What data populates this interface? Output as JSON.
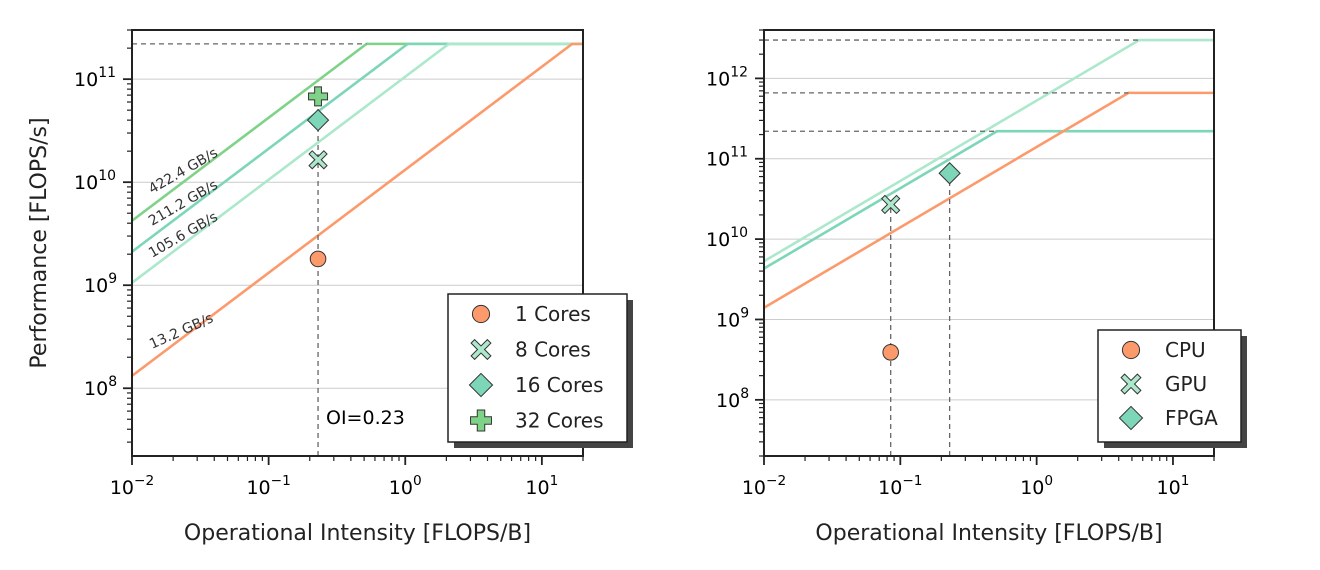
{
  "chart_data": [
    {
      "type": "line",
      "xlabel": "Operational Intensity [FLOPS/B]",
      "ylabel": "Performance [FLOPS/s]",
      "xscale": "log",
      "yscale": "log",
      "xlim": [
        0.01,
        20
      ],
      "ylim": [
        22000000.0,
        300000000000.0
      ],
      "x_ticks": [
        {
          "value": 0.01,
          "base": "10",
          "exp": "−2"
        },
        {
          "value": 0.1,
          "base": "10",
          "exp": "−1"
        },
        {
          "value": 1,
          "base": "10",
          "exp": "0"
        },
        {
          "value": 10,
          "base": "10",
          "exp": "1"
        }
      ],
      "y_ticks": [
        {
          "value": 100000000.0,
          "base": "10",
          "exp": "8"
        },
        {
          "value": 1000000000.0,
          "base": "10",
          "exp": "9"
        },
        {
          "value": 10000000000.0,
          "base": "10",
          "exp": "10"
        },
        {
          "value": 100000000000.0,
          "base": "10",
          "exp": "11"
        }
      ],
      "grid": "horizontal",
      "peak_lines": [
        220000000000.0
      ],
      "rooflines": [
        {
          "label": "422.4 GB/s",
          "bandwidth": 422400000000.0,
          "peak": 220000000000.0,
          "color": "#7ed388"
        },
        {
          "label": "211.2 GB/s",
          "bandwidth": 211200000000.0,
          "peak": 220000000000.0,
          "color": "#7dd6b8"
        },
        {
          "label": "105.6 GB/s",
          "bandwidth": 105600000000.0,
          "peak": 220000000000.0,
          "color": "#ace8cc"
        },
        {
          "label": "13.2 GB/s",
          "bandwidth": 13200000000.0,
          "peak": 220000000000.0,
          "color": "#fc9a6c"
        }
      ],
      "oi_lines": [
        0.23
      ],
      "annotation": "OI=0.23",
      "points": [
        {
          "name": "1 Cores",
          "x": 0.23,
          "y": 1800000000.0,
          "marker": "circle",
          "color": "#fc9a6c"
        },
        {
          "name": "8 Cores",
          "x": 0.23,
          "y": 16500000000.0,
          "marker": "x",
          "color": "#ace8cc"
        },
        {
          "name": "16 Cores",
          "x": 0.23,
          "y": 40000000000.0,
          "marker": "diamond",
          "color": "#7dd6b8"
        },
        {
          "name": "32 Cores",
          "x": 0.23,
          "y": 68000000000.0,
          "marker": "plus",
          "color": "#7ed388"
        }
      ],
      "legend": "lower-right",
      "legend_entries": [
        {
          "label": "1 Cores",
          "marker": "circle",
          "color": "#fc9a6c"
        },
        {
          "label": "8 Cores",
          "marker": "x",
          "color": "#ace8cc"
        },
        {
          "label": "16 Cores",
          "marker": "diamond",
          "color": "#7dd6b8"
        },
        {
          "label": "32 Cores",
          "marker": "plus",
          "color": "#7ed388"
        }
      ]
    },
    {
      "type": "line",
      "xlabel": "Operational Intensity [FLOPS/B]",
      "ylabel": "",
      "xscale": "log",
      "yscale": "log",
      "xlim": [
        0.01,
        20
      ],
      "ylim": [
        20000000.0,
        4000000000000.0
      ],
      "x_ticks": [
        {
          "value": 0.01,
          "base": "10",
          "exp": "−2"
        },
        {
          "value": 0.1,
          "base": "10",
          "exp": "−1"
        },
        {
          "value": 1,
          "base": "10",
          "exp": "0"
        },
        {
          "value": 10,
          "base": "10",
          "exp": "1"
        }
      ],
      "y_ticks": [
        {
          "value": 100000000.0,
          "base": "10",
          "exp": "8"
        },
        {
          "value": 1000000000.0,
          "base": "10",
          "exp": "9"
        },
        {
          "value": 10000000000.0,
          "base": "10",
          "exp": "10"
        },
        {
          "value": 100000000000.0,
          "base": "10",
          "exp": "11"
        },
        {
          "value": 1000000000000.0,
          "base": "10",
          "exp": "12"
        }
      ],
      "grid": "horizontal",
      "peak_lines": [
        3000000000000.0,
        660000000000.0,
        220000000000.0
      ],
      "rooflines": [
        {
          "label": "GPU",
          "bandwidth": 530000000000.0,
          "peak": 3000000000000.0,
          "color": "#ace8cc"
        },
        {
          "label": "FPGA",
          "bandwidth": 430000000000.0,
          "peak": 220000000000.0,
          "color": "#7dd6b8"
        },
        {
          "label": "CPU",
          "bandwidth": 140000000000.0,
          "peak": 660000000000.0,
          "color": "#fc9a6c"
        }
      ],
      "oi_lines": [
        0.085,
        0.23
      ],
      "annotation": "",
      "points": [
        {
          "name": "CPU",
          "x": 0.085,
          "y": 390000000.0,
          "marker": "circle",
          "color": "#fc9a6c"
        },
        {
          "name": "GPU",
          "x": 0.085,
          "y": 27000000000.0,
          "marker": "x",
          "color": "#ace8cc"
        },
        {
          "name": "FPGA",
          "x": 0.23,
          "y": 66000000000.0,
          "marker": "diamond",
          "color": "#7dd6b8"
        }
      ],
      "legend": "lower-right",
      "legend_entries": [
        {
          "label": "CPU",
          "marker": "circle",
          "color": "#fc9a6c"
        },
        {
          "label": "GPU",
          "marker": "x",
          "color": "#ace8cc"
        },
        {
          "label": "FPGA",
          "marker": "diamond",
          "color": "#7dd6b8"
        }
      ]
    }
  ]
}
